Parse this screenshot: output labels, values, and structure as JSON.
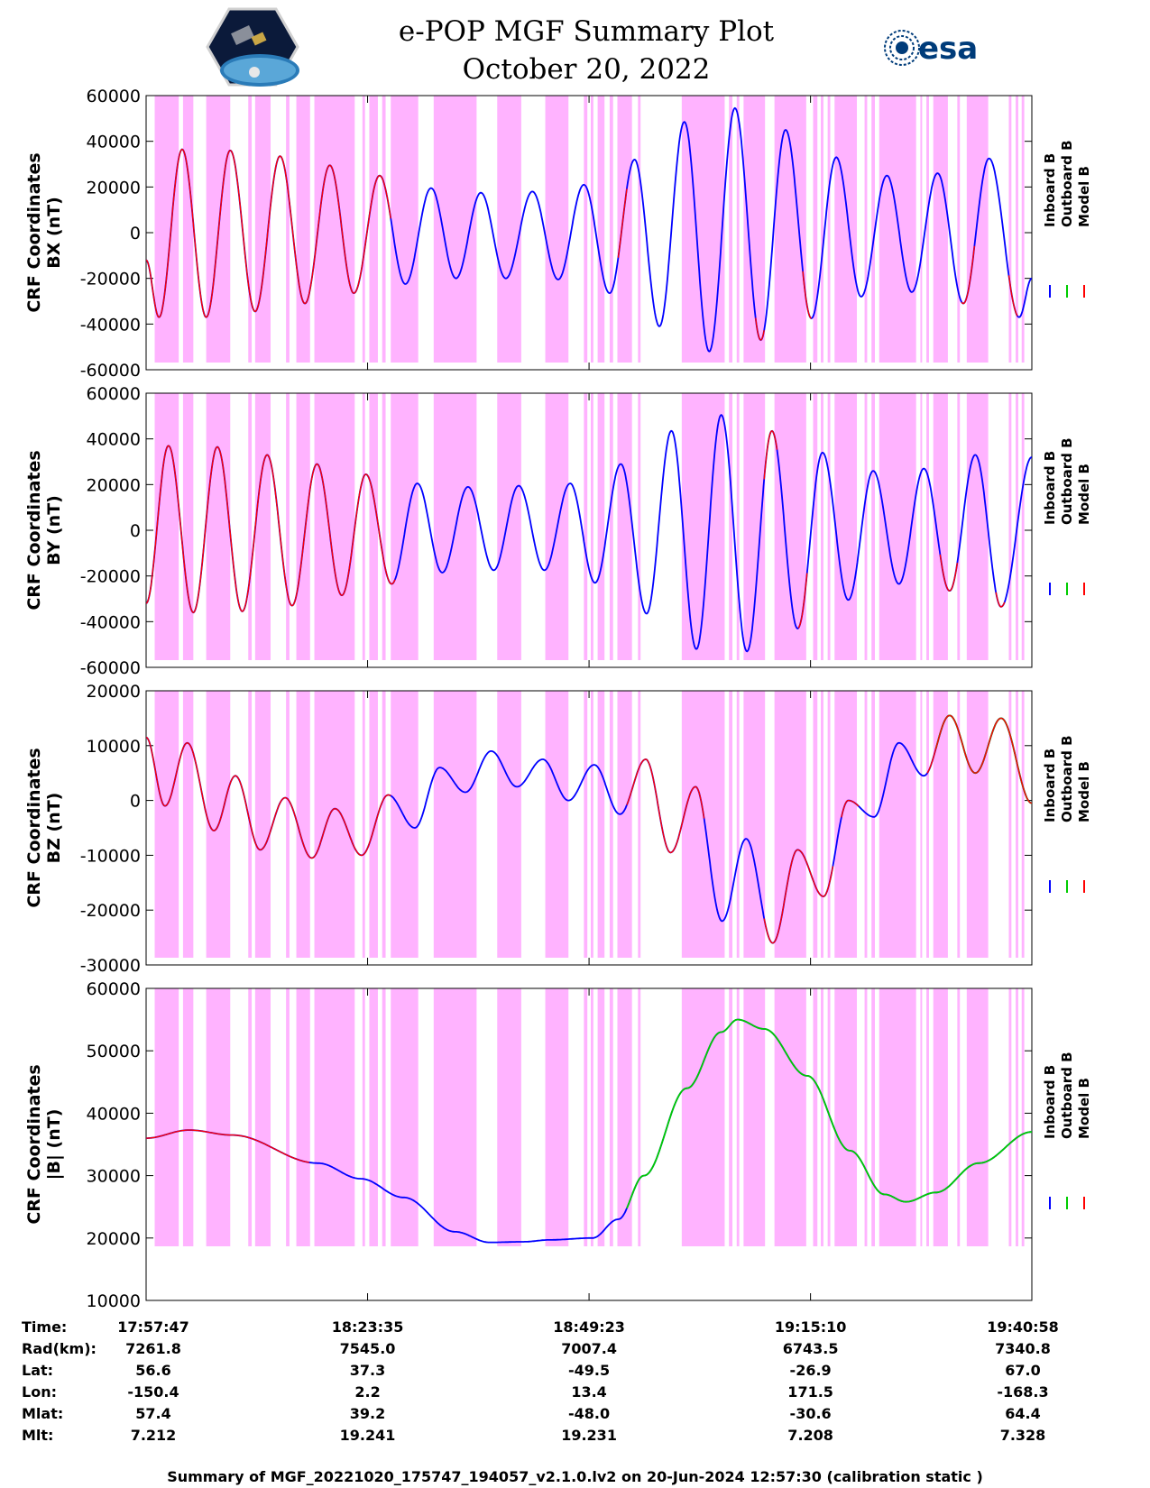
{
  "header": {
    "title": "e-POP MGF Summary Plot",
    "date": "October 20, 2022",
    "esa_logo_text": "esa"
  },
  "legend": {
    "items": [
      {
        "label": "Inboard B",
        "color": "#0000ff"
      },
      {
        "label": "Outboard B",
        "color": "#00cc00"
      },
      {
        "label": "Model B",
        "color": "#ff0000"
      }
    ]
  },
  "colors": {
    "shading": "#ffb3ff",
    "inboard": "#0000ff",
    "outboard": "#00cc00",
    "model": "#ff0000"
  },
  "chart_data": [
    {
      "type": "line",
      "ylabel_line1": "CRF Coordinates",
      "ylabel_line2": "BX (nT)",
      "ylim": [
        -60000,
        60000
      ],
      "yticks": [
        60000,
        40000,
        20000,
        0,
        -20000,
        -40000,
        -60000
      ],
      "x_range_minutes": [
        0,
        103.183
      ],
      "peaks": [
        {
          "t": 0,
          "v": -12000
        },
        {
          "t": 1.5,
          "v": -37000
        },
        {
          "t": 4.2,
          "v": 36500
        },
        {
          "t": 7.0,
          "v": -37000
        },
        {
          "t": 9.8,
          "v": 36000
        },
        {
          "t": 12.7,
          "v": -34500
        },
        {
          "t": 15.6,
          "v": 33500
        },
        {
          "t": 18.5,
          "v": -31000
        },
        {
          "t": 21.4,
          "v": 29500
        },
        {
          "t": 24.2,
          "v": -26500
        },
        {
          "t": 27.2,
          "v": 25000
        },
        {
          "t": 30.2,
          "v": -22500
        },
        {
          "t": 33.2,
          "v": 19500
        },
        {
          "t": 36.1,
          "v": -20000
        },
        {
          "t": 39.0,
          "v": 17500
        },
        {
          "t": 41.9,
          "v": -20000
        },
        {
          "t": 45.0,
          "v": 18000
        },
        {
          "t": 48.0,
          "v": -20500
        },
        {
          "t": 51.0,
          "v": 21000
        },
        {
          "t": 54.0,
          "v": -26500
        },
        {
          "t": 56.9,
          "v": 32000
        },
        {
          "t": 59.8,
          "v": -41000
        },
        {
          "t": 62.7,
          "v": 48500
        },
        {
          "t": 65.6,
          "v": -52000
        },
        {
          "t": 68.6,
          "v": 54500
        },
        {
          "t": 71.6,
          "v": -47000
        },
        {
          "t": 74.5,
          "v": 45000
        },
        {
          "t": 77.5,
          "v": -37500
        },
        {
          "t": 80.4,
          "v": 33000
        },
        {
          "t": 83.3,
          "v": -28000
        },
        {
          "t": 86.3,
          "v": 25000
        },
        {
          "t": 89.2,
          "v": -26000
        },
        {
          "t": 92.2,
          "v": 26000
        },
        {
          "t": 95.2,
          "v": -31000
        },
        {
          "t": 98.2,
          "v": 32500
        },
        {
          "t": 101.7,
          "v": -37000
        },
        {
          "t": 103.183,
          "v": -20000
        }
      ],
      "model_segments": [
        [
          0,
          28.5
        ],
        [
          55,
          56
        ],
        [
          71,
          72
        ],
        [
          76.5,
          77.5
        ],
        [
          95,
          96.5
        ],
        [
          100.5,
          101.5
        ]
      ]
    },
    {
      "type": "line",
      "ylabel_line1": "CRF Coordinates",
      "ylabel_line2": "BY (nT)",
      "ylim": [
        -60000,
        60000
      ],
      "yticks": [
        60000,
        40000,
        20000,
        0,
        -20000,
        -40000,
        -60000
      ],
      "x_range_minutes": [
        0,
        103.183
      ],
      "peaks": [
        {
          "t": 0,
          "v": -32000
        },
        {
          "t": 2.6,
          "v": 37000
        },
        {
          "t": 5.5,
          "v": -36000
        },
        {
          "t": 8.3,
          "v": 36500
        },
        {
          "t": 11.2,
          "v": -35500
        },
        {
          "t": 14.1,
          "v": 33000
        },
        {
          "t": 17.0,
          "v": -33000
        },
        {
          "t": 19.9,
          "v": 29000
        },
        {
          "t": 22.8,
          "v": -28500
        },
        {
          "t": 25.6,
          "v": 24500
        },
        {
          "t": 28.6,
          "v": -23500
        },
        {
          "t": 31.6,
          "v": 20500
        },
        {
          "t": 34.5,
          "v": -18500
        },
        {
          "t": 37.5,
          "v": 19000
        },
        {
          "t": 40.5,
          "v": -17500
        },
        {
          "t": 43.4,
          "v": 19500
        },
        {
          "t": 46.4,
          "v": -17500
        },
        {
          "t": 49.4,
          "v": 20500
        },
        {
          "t": 52.3,
          "v": -23000
        },
        {
          "t": 55.3,
          "v": 29000
        },
        {
          "t": 58.3,
          "v": -36500
        },
        {
          "t": 61.2,
          "v": 43500
        },
        {
          "t": 64.1,
          "v": -52000
        },
        {
          "t": 67.0,
          "v": 50500
        },
        {
          "t": 70.0,
          "v": -53000
        },
        {
          "t": 72.9,
          "v": 43500
        },
        {
          "t": 75.9,
          "v": -43000
        },
        {
          "t": 78.8,
          "v": 34000
        },
        {
          "t": 81.8,
          "v": -30500
        },
        {
          "t": 84.7,
          "v": 26000
        },
        {
          "t": 87.7,
          "v": -23500
        },
        {
          "t": 90.6,
          "v": 27000
        },
        {
          "t": 93.6,
          "v": -26500
        },
        {
          "t": 96.6,
          "v": 33000
        },
        {
          "t": 99.6,
          "v": -33500
        },
        {
          "t": 103.183,
          "v": 32000
        }
      ],
      "model_segments": [
        [
          0,
          29
        ],
        [
          72,
          73.5
        ],
        [
          76,
          77
        ],
        [
          92.5,
          94.5
        ],
        [
          99,
          100
        ]
      ]
    },
    {
      "type": "line",
      "ylabel_line1": "CRF Coordinates",
      "ylabel_line2": "BZ (nT)",
      "ylim": [
        -30000,
        20000
      ],
      "yticks": [
        20000,
        10000,
        0,
        -10000,
        -20000,
        -30000
      ],
      "x_range_minutes": [
        0,
        103.183
      ],
      "peaks": [
        {
          "t": 0,
          "v": 11500
        },
        {
          "t": 2.2,
          "v": -1000
        },
        {
          "t": 4.8,
          "v": 10500
        },
        {
          "t": 7.9,
          "v": -5500
        },
        {
          "t": 10.4,
          "v": 4500
        },
        {
          "t": 13.3,
          "v": -9000
        },
        {
          "t": 16.2,
          "v": 500
        },
        {
          "t": 19.3,
          "v": -10500
        },
        {
          "t": 22.0,
          "v": -1500
        },
        {
          "t": 25.1,
          "v": -10000
        },
        {
          "t": 28.2,
          "v": 1000
        },
        {
          "t": 31.3,
          "v": -5000
        },
        {
          "t": 34.2,
          "v": 6000
        },
        {
          "t": 37.2,
          "v": 1500
        },
        {
          "t": 40.2,
          "v": 9000
        },
        {
          "t": 43.2,
          "v": 2500
        },
        {
          "t": 46.2,
          "v": 7500
        },
        {
          "t": 49.2,
          "v": 0
        },
        {
          "t": 52.2,
          "v": 6500
        },
        {
          "t": 55.2,
          "v": -2500
        },
        {
          "t": 58.2,
          "v": 7500
        },
        {
          "t": 61.1,
          "v": -9500
        },
        {
          "t": 64.0,
          "v": 2500
        },
        {
          "t": 67.1,
          "v": -22000
        },
        {
          "t": 69.9,
          "v": -7000
        },
        {
          "t": 73.0,
          "v": -26000
        },
        {
          "t": 75.9,
          "v": -9000
        },
        {
          "t": 78.9,
          "v": -17500
        },
        {
          "t": 81.8,
          "v": 0
        },
        {
          "t": 84.8,
          "v": -3000
        },
        {
          "t": 87.7,
          "v": 10500
        },
        {
          "t": 90.6,
          "v": 4500
        },
        {
          "t": 93.6,
          "v": 15500
        },
        {
          "t": 96.6,
          "v": 5000
        },
        {
          "t": 99.6,
          "v": 15000
        },
        {
          "t": 103.183,
          "v": -500
        }
      ],
      "model_segments": [
        [
          0,
          28.5
        ],
        [
          56,
          65
        ],
        [
          72,
          80
        ],
        [
          81,
          83
        ],
        [
          91,
          103.183
        ]
      ],
      "outboard_segments": [
        [
          92,
          103.183
        ]
      ]
    },
    {
      "type": "line",
      "ylabel_line1": "CRF Coordinates",
      "ylabel_line2": "|B| (nT)",
      "ylim": [
        10000,
        60000
      ],
      "yticks": [
        60000,
        50000,
        40000,
        30000,
        20000,
        10000
      ],
      "x_range_minutes": [
        0,
        103.183
      ],
      "peaks": [
        {
          "t": 0,
          "v": 36000
        },
        {
          "t": 5,
          "v": 37300
        },
        {
          "t": 10,
          "v": 36500
        },
        {
          "t": 20,
          "v": 32000
        },
        {
          "t": 25,
          "v": 29500
        },
        {
          "t": 30,
          "v": 26500
        },
        {
          "t": 36,
          "v": 21000
        },
        {
          "t": 40,
          "v": 19300
        },
        {
          "t": 44,
          "v": 19400
        },
        {
          "t": 47,
          "v": 19700
        },
        {
          "t": 52,
          "v": 20000
        },
        {
          "t": 55,
          "v": 23000
        },
        {
          "t": 58,
          "v": 30000
        },
        {
          "t": 63,
          "v": 44000
        },
        {
          "t": 67,
          "v": 53000
        },
        {
          "t": 68.9,
          "v": 55000
        },
        {
          "t": 72,
          "v": 53500
        },
        {
          "t": 77,
          "v": 46000
        },
        {
          "t": 82,
          "v": 34000
        },
        {
          "t": 86,
          "v": 27000
        },
        {
          "t": 88.5,
          "v": 25800
        },
        {
          "t": 92,
          "v": 27300
        },
        {
          "t": 97,
          "v": 32000
        },
        {
          "t": 103.183,
          "v": 37000
        }
      ],
      "model_segments": [
        [
          0,
          19
        ]
      ],
      "outboard_segments": [
        [
          56,
          103.183
        ]
      ]
    }
  ],
  "shading_intervals": [
    [
      1.0,
      3.8
    ],
    [
      4.3,
      5.5
    ],
    [
      7.0,
      9.8
    ],
    [
      11.9,
      12.3
    ],
    [
      12.7,
      14.5
    ],
    [
      16.3,
      16.7
    ],
    [
      17.5,
      19.1
    ],
    [
      19.6,
      24.3
    ],
    [
      25.2,
      25.5
    ],
    [
      26.0,
      27.0
    ],
    [
      27.5,
      27.9
    ],
    [
      28.5,
      31.7
    ],
    [
      33.5,
      38.5
    ],
    [
      40.9,
      43.7
    ],
    [
      46.5,
      49.2
    ],
    [
      51.0,
      51.4
    ],
    [
      51.8,
      52.1
    ],
    [
      52.6,
      53.4
    ],
    [
      54.0,
      54.4
    ],
    [
      54.9,
      56.6
    ],
    [
      57.3,
      57.6
    ],
    [
      62.4,
      67.4
    ],
    [
      67.9,
      68.3
    ],
    [
      68.8,
      69.1
    ],
    [
      69.6,
      72.1
    ],
    [
      73.2,
      76.9
    ],
    [
      77.7,
      78.2
    ],
    [
      78.6,
      78.9
    ],
    [
      79.4,
      79.7
    ],
    [
      80.2,
      82.8
    ],
    [
      83.7,
      84.0
    ],
    [
      84.5,
      84.9
    ],
    [
      85.4,
      89.7
    ],
    [
      90.2,
      90.4
    ],
    [
      90.9,
      91.2
    ],
    [
      91.7,
      93.4
    ],
    [
      94.5,
      94.8
    ],
    [
      95.6,
      98.1
    ],
    [
      100.5,
      100.8
    ],
    [
      101.3,
      101.6
    ],
    [
      102.0,
      102.3
    ]
  ],
  "x_axis": {
    "tick_minutes": [
      25.8,
      51.6,
      77.4
    ],
    "columns": [
      {
        "time": "17:57:47",
        "rad": "7261.8",
        "lat": "56.6",
        "lon": "-150.4",
        "mlat": "57.4",
        "mlt": "7.212"
      },
      {
        "time": "18:23:35",
        "rad": "7545.0",
        "lat": "37.3",
        "lon": "2.2",
        "mlat": "39.2",
        "mlt": "19.241"
      },
      {
        "time": "18:49:23",
        "rad": "7007.4",
        "lat": "-49.5",
        "lon": "13.4",
        "mlat": "-48.0",
        "mlt": "19.231"
      },
      {
        "time": "19:15:10",
        "rad": "6743.5",
        "lat": "-26.9",
        "lon": "171.5",
        "mlat": "-30.6",
        "mlt": "7.208"
      },
      {
        "time": "19:40:58",
        "rad": "7340.8",
        "lat": "67.0",
        "lon": "-168.3",
        "mlat": "64.4",
        "mlt": "7.328"
      }
    ]
  },
  "info_labels": {
    "time": "Time:",
    "rad": "Rad(km):",
    "lat": "Lat:",
    "lon": "Lon:",
    "mlat": "Mlat:",
    "mlt": "Mlt:"
  },
  "footer": "Summary of MGF_20221020_175747_194057_v2.1.0.lv2 on 20-Jun-2024 12:57:30 (calibration static )"
}
